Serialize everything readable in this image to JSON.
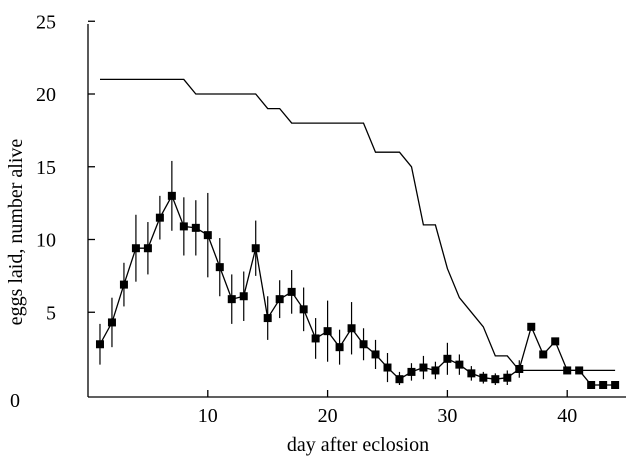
{
  "chart_data": {
    "type": "line",
    "title": "",
    "xlabel": "day after eclosion",
    "ylabel": "eggs laid, number alive",
    "xlim": [
      0,
      45
    ],
    "ylim": [
      0,
      25
    ],
    "xticks": [
      10,
      20,
      30,
      40
    ],
    "yticks": [
      5,
      10,
      15,
      20,
      25
    ],
    "origin_label": "0",
    "grid": false,
    "legend": "none",
    "colors": {
      "line": "#000000",
      "marker": "#000000"
    },
    "series": [
      {
        "style": "step-line",
        "points": [
          [
            1,
            21
          ],
          [
            8,
            21
          ],
          [
            9,
            20
          ],
          [
            14,
            20
          ],
          [
            15,
            19
          ],
          [
            16,
            19
          ],
          [
            17,
            18
          ],
          [
            23,
            18
          ],
          [
            24,
            16
          ],
          [
            26,
            16
          ],
          [
            27,
            15
          ],
          [
            28,
            11
          ],
          [
            29,
            11
          ],
          [
            30,
            8
          ],
          [
            31,
            6
          ],
          [
            32,
            5
          ],
          [
            33,
            4
          ],
          [
            34,
            2
          ],
          [
            35,
            2
          ],
          [
            36,
            1
          ],
          [
            44,
            1
          ]
        ]
      },
      {
        "style": "line-markers-errorbars",
        "points": [
          [
            1,
            2.8,
            1.4
          ],
          [
            2,
            4.3,
            1.7
          ],
          [
            3,
            6.9,
            1.5
          ],
          [
            4,
            9.4,
            2.3
          ],
          [
            5,
            9.4,
            1.8
          ],
          [
            6,
            11.5,
            1.5
          ],
          [
            7,
            13.0,
            2.4
          ],
          [
            8,
            10.9,
            2.0
          ],
          [
            9,
            10.8,
            1.9
          ],
          [
            10,
            10.3,
            2.9
          ],
          [
            11,
            8.1,
            2.0
          ],
          [
            12,
            5.9,
            1.7
          ],
          [
            13,
            6.1,
            1.7
          ],
          [
            14,
            9.4,
            1.9
          ],
          [
            15,
            4.6,
            1.5
          ],
          [
            16,
            5.9,
            1.3
          ],
          [
            17,
            6.4,
            1.5
          ],
          [
            18,
            5.2,
            1.5
          ],
          [
            19,
            3.2,
            1.4
          ],
          [
            20,
            3.7,
            2.1
          ],
          [
            21,
            2.6,
            1.2
          ],
          [
            22,
            3.9,
            1.8
          ],
          [
            23,
            2.8,
            1.1
          ],
          [
            24,
            2.1,
            1.0
          ],
          [
            25,
            1.2,
            1.0
          ],
          [
            26,
            0.4,
            0.5
          ],
          [
            27,
            0.9,
            0.6
          ],
          [
            28,
            1.2,
            0.8
          ],
          [
            29,
            1.0,
            0.6
          ],
          [
            30,
            1.8,
            1.1
          ],
          [
            31,
            1.4,
            0.7
          ],
          [
            32,
            0.8,
            0.5
          ],
          [
            33,
            0.5,
            0.4
          ],
          [
            34,
            0.4,
            0.4
          ],
          [
            35,
            0.5,
            0.5
          ],
          [
            36,
            1.1,
            0.6
          ],
          [
            37,
            4.0,
            0
          ],
          [
            38,
            2.1,
            0
          ],
          [
            39,
            3.0,
            0
          ],
          [
            40,
            1.0,
            0
          ],
          [
            41,
            1.0,
            0
          ],
          [
            42,
            0,
            0
          ],
          [
            43,
            0,
            0
          ],
          [
            44,
            0,
            0
          ]
        ]
      }
    ]
  }
}
